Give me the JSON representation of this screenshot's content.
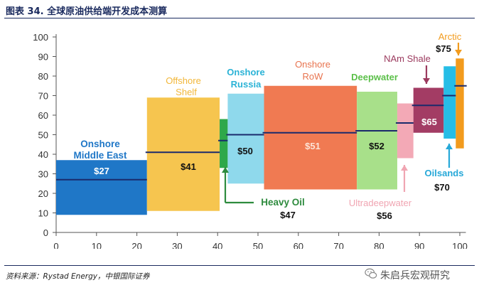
{
  "header": {
    "title": "图表 34. 全球原油供给端开发成本测算"
  },
  "source": {
    "text": "资料来源：Rystad Energy，中银国际证券"
  },
  "watermark": {
    "text": "朱启兵宏观研究",
    "icon": "wechat-icon"
  },
  "chart_data": {
    "type": "bar",
    "title": "",
    "xlabel": "",
    "ylabel": "",
    "xlim": [
      0,
      100
    ],
    "ylim": [
      0,
      100
    ],
    "x_ticks": [
      0,
      10,
      20,
      30,
      40,
      50,
      60,
      70,
      80,
      90,
      100
    ],
    "y_ticks": [
      0,
      10,
      20,
      30,
      40,
      50,
      60,
      70,
      80,
      90,
      100
    ],
    "grid": false,
    "segments": [
      {
        "name": "Onshore Middle East",
        "x0": 0,
        "x1": 22.5,
        "low": 9,
        "high": 37,
        "breakeven": 27,
        "price_label": "$27",
        "color": "#1f77c7",
        "label_color": "#1f77c7",
        "name_lines": [
          "Onshore",
          "Middle East"
        ]
      },
      {
        "name": "Offshore Shelf",
        "x0": 22.5,
        "x1": 40.5,
        "low": 11,
        "high": 69,
        "breakeven": 41,
        "price_label": "$41",
        "color": "#f6c54f",
        "label_color": "#f2b73a",
        "name_lines": [
          "Offshore",
          "Shelf"
        ]
      },
      {
        "name": "Heavy Oil",
        "x0": 40.5,
        "x1": 42.5,
        "low": 33,
        "high": 58,
        "breakeven": 47,
        "price_label": "$47",
        "color": "#2ea84a",
        "label_color": "#2e8b3e",
        "name_lines": [
          "Heavy Oil"
        ]
      },
      {
        "name": "Onshore Russia",
        "x0": 42.5,
        "x1": 51.5,
        "low": 25,
        "high": 71,
        "breakeven": 50,
        "price_label": "$50",
        "color": "#8fd9ec",
        "label_color": "#2bb3d6",
        "name_lines": [
          "Onshore",
          "Russia"
        ]
      },
      {
        "name": "Onshore RoW",
        "x0": 51.5,
        "x1": 74.5,
        "low": 22,
        "high": 75,
        "breakeven": 51,
        "price_label": "$51",
        "color": "#f07a52",
        "label_color": "#e8734e",
        "name_lines": [
          "Onshore",
          "RoW"
        ]
      },
      {
        "name": "Deepwater",
        "x0": 74.5,
        "x1": 84.5,
        "low": 22,
        "high": 72,
        "breakeven": 52,
        "price_label": "$52",
        "color": "#a8e08a",
        "label_color": "#5cc04a",
        "name_lines": [
          "Deepwater"
        ]
      },
      {
        "name": "Ultradeepwater",
        "x0": 84.5,
        "x1": 88.5,
        "low": 38,
        "high": 66,
        "breakeven": 56,
        "price_label": "$56",
        "color": "#f3a9b6",
        "label_color": "#f0a5b2",
        "name_lines": [
          "Ultradeepwater"
        ]
      },
      {
        "name": "NAm Shale",
        "x0": 88.5,
        "x1": 96,
        "low": 51,
        "high": 74,
        "breakeven": 65,
        "price_label": "$65",
        "color": "#a33c64",
        "label_color": "#9b3a5e",
        "name_lines": [
          "NAm Shale"
        ]
      },
      {
        "name": "Oilsands",
        "x0": 96,
        "x1": 99,
        "low": 48,
        "high": 85,
        "breakeven": 70,
        "price_label": "$70",
        "color": "#26bde6",
        "label_color": "#26a8d8",
        "name_lines": [
          "Oilsands"
        ]
      },
      {
        "name": "Arctic",
        "x0": 99,
        "x1": 101,
        "low": 43,
        "high": 89,
        "breakeven": 75,
        "price_label": "$75",
        "color": "#f29b1d",
        "label_color": "#f29b1d",
        "name_lines": [
          "Arctic"
        ]
      }
    ]
  }
}
